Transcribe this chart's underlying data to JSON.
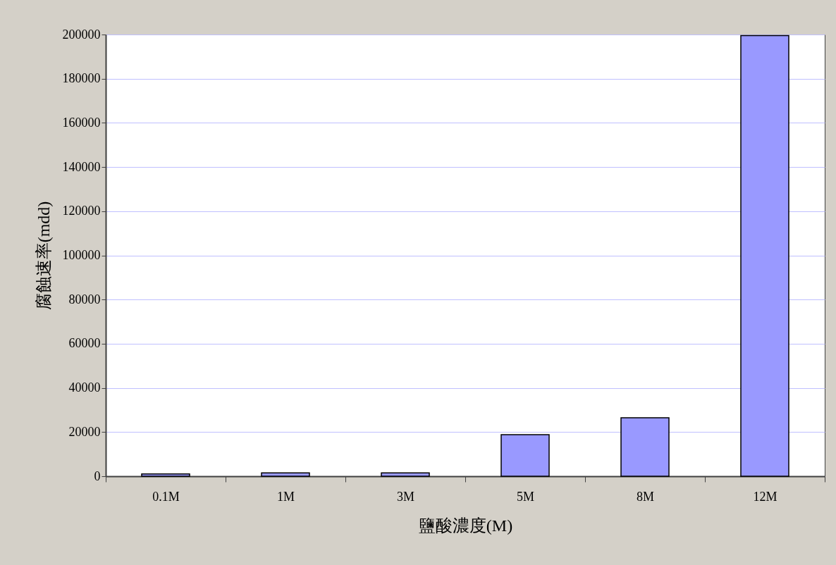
{
  "chart_data": {
    "type": "bar",
    "xlabel": "鹽酸濃度(M)",
    "ylabel": "腐蝕速率(mdd)",
    "categories": [
      "0.1M",
      "1M",
      "3M",
      "5M",
      "8M",
      "12M"
    ],
    "values": [
      1000,
      1500,
      1500,
      18800,
      26500,
      199500
    ],
    "color": "#9999ff",
    "ylim": [
      0,
      200000
    ],
    "yticks": [
      0,
      20000,
      40000,
      60000,
      80000,
      100000,
      120000,
      140000,
      160000,
      180000,
      200000
    ],
    "grid": "y"
  }
}
